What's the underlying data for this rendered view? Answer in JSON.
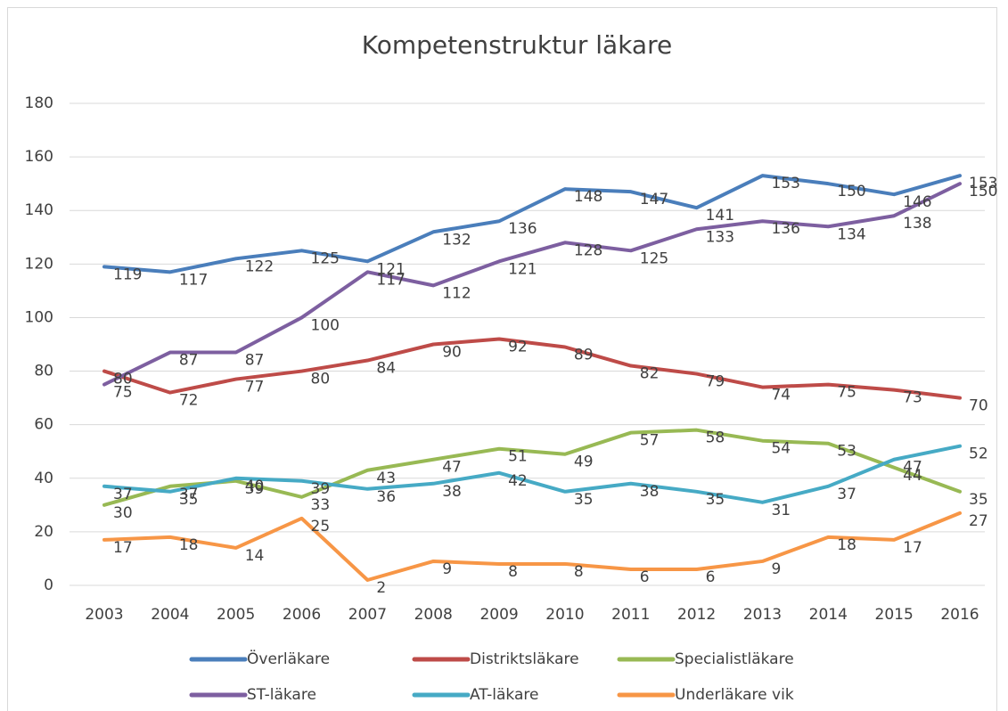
{
  "chart_data": {
    "type": "line",
    "title": "Kompetenstruktur läkare",
    "categories": [
      "2003",
      "2004",
      "2005",
      "2006",
      "2007",
      "2008",
      "2009",
      "2010",
      "2011",
      "2012",
      "2013",
      "2014",
      "2015",
      "2016"
    ],
    "series": [
      {
        "name": "Överläkare",
        "color": "#4a7ebb",
        "values": [
          119,
          117,
          122,
          125,
          121,
          132,
          136,
          148,
          147,
          141,
          153,
          150,
          146,
          153
        ]
      },
      {
        "name": "Distriktsläkare",
        "color": "#be4b48",
        "values": [
          80,
          72,
          77,
          80,
          84,
          90,
          92,
          89,
          82,
          79,
          74,
          75,
          73,
          70
        ]
      },
      {
        "name": "Specialistläkare",
        "color": "#98b954",
        "values": [
          30,
          37,
          39,
          33,
          43,
          47,
          51,
          49,
          57,
          58,
          54,
          53,
          44,
          35
        ]
      },
      {
        "name": "ST-läkare",
        "color": "#7d5fa0",
        "values": [
          75,
          87,
          87,
          100,
          117,
          112,
          121,
          128,
          125,
          133,
          136,
          134,
          138,
          150
        ]
      },
      {
        "name": "AT-läkare",
        "color": "#46aac5",
        "values": [
          37,
          35,
          40,
          39,
          36,
          38,
          42,
          35,
          38,
          35,
          31,
          37,
          47,
          52
        ]
      },
      {
        "name": "Underläkare vik",
        "color": "#f79646",
        "values": [
          17,
          18,
          14,
          25,
          2,
          9,
          8,
          8,
          6,
          6,
          9,
          18,
          17,
          27
        ]
      }
    ],
    "ylim": [
      0,
      180
    ],
    "yticks": [
      0,
      20,
      40,
      60,
      80,
      100,
      120,
      140,
      160,
      180
    ],
    "grid": true,
    "legend": "bottom"
  }
}
